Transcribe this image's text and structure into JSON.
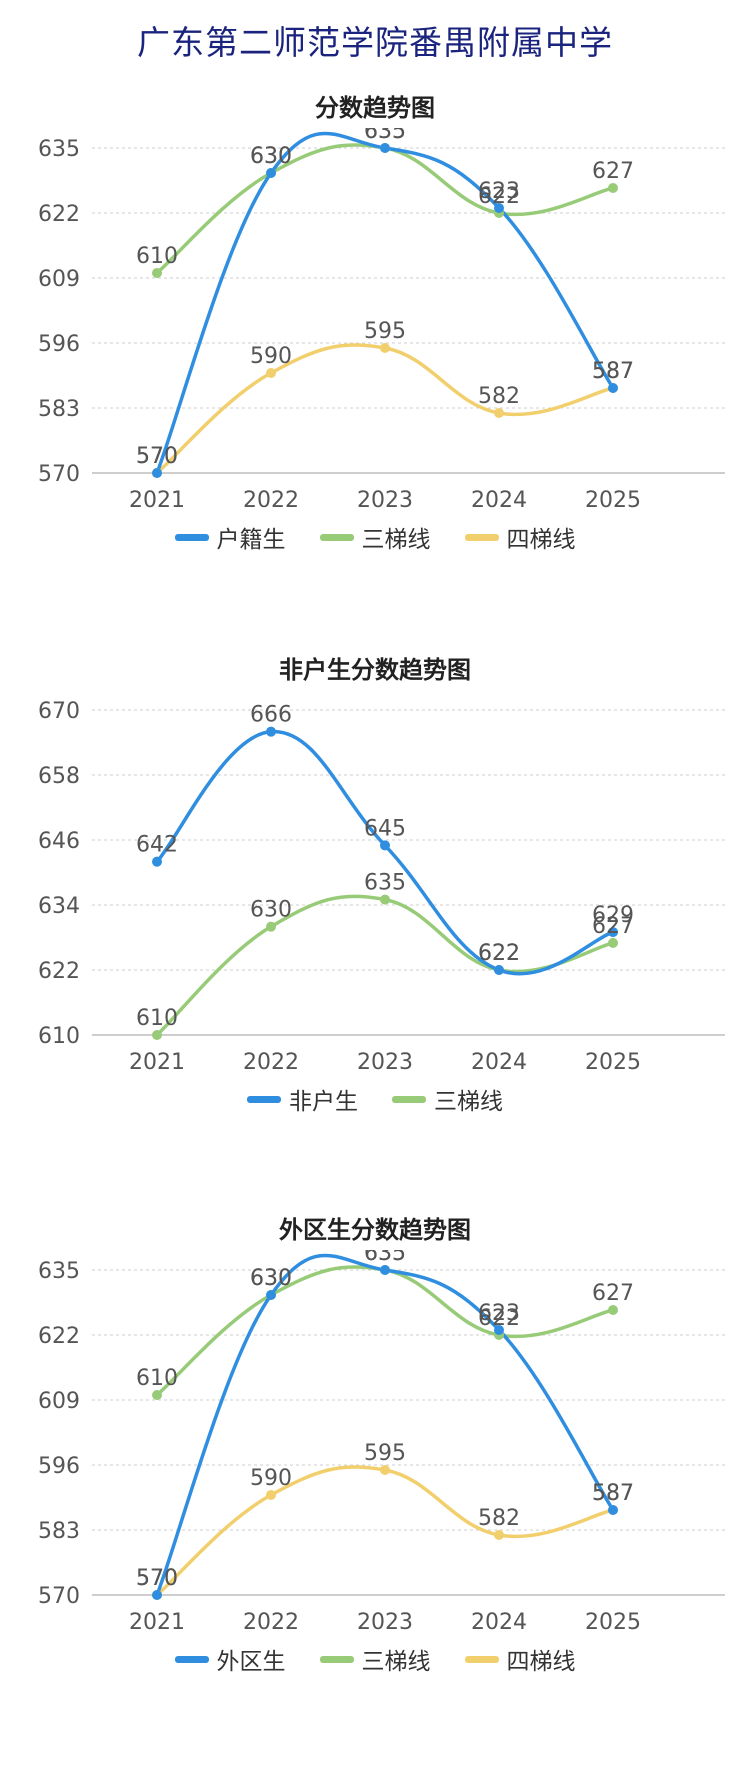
{
  "page_title": "广东第二师范学院番禺附属中学",
  "colors": {
    "blue": "#2f8ee0",
    "green": "#98cb78",
    "yellow": "#f2cf6d"
  },
  "chart_data": [
    {
      "type": "line",
      "title": "分数趋势图",
      "categories": [
        "2021",
        "2022",
        "2023",
        "2024",
        "2025"
      ],
      "ylim": [
        570,
        635
      ],
      "yticks": [
        570,
        583,
        596,
        609,
        622,
        635
      ],
      "grid": true,
      "legend_position": "bottom",
      "series": [
        {
          "name": "户籍生",
          "color": "#2f8ee0",
          "values": [
            570,
            630,
            635,
            623,
            587
          ],
          "labels": [
            "570",
            "630",
            "635",
            "623",
            "587"
          ]
        },
        {
          "name": "三梯线",
          "color": "#98cb78",
          "values": [
            610,
            630,
            635,
            622,
            627
          ],
          "labels": [
            "610",
            "630",
            "635",
            "622",
            "627"
          ]
        },
        {
          "name": "四梯线",
          "color": "#f2cf6d",
          "values": [
            570,
            590,
            595,
            582,
            587
          ],
          "labels": [
            "570",
            "590",
            "595",
            "582",
            "587"
          ]
        }
      ]
    },
    {
      "type": "line",
      "title": "非户生分数趋势图",
      "categories": [
        "2021",
        "2022",
        "2023",
        "2024",
        "2025"
      ],
      "ylim": [
        610,
        670
      ],
      "yticks": [
        610,
        622,
        634,
        646,
        658,
        670
      ],
      "grid": true,
      "legend_position": "bottom",
      "series": [
        {
          "name": "非户生",
          "color": "#2f8ee0",
          "values": [
            642,
            666,
            645,
            622,
            629
          ],
          "labels": [
            "642",
            "666",
            "645",
            "622",
            "629"
          ]
        },
        {
          "name": "三梯线",
          "color": "#98cb78",
          "values": [
            610,
            630,
            635,
            622,
            627
          ],
          "labels": [
            "610",
            "630",
            "635",
            "622",
            "627"
          ]
        }
      ]
    },
    {
      "type": "line",
      "title": "外区生分数趋势图",
      "categories": [
        "2021",
        "2022",
        "2023",
        "2024",
        "2025"
      ],
      "ylim": [
        570,
        635
      ],
      "yticks": [
        570,
        583,
        596,
        609,
        622,
        635
      ],
      "grid": true,
      "legend_position": "bottom",
      "series": [
        {
          "name": "外区生",
          "color": "#2f8ee0",
          "values": [
            570,
            630,
            635,
            623,
            587
          ],
          "labels": [
            "570",
            "630",
            "635",
            "623",
            "587"
          ]
        },
        {
          "name": "三梯线",
          "color": "#98cb78",
          "values": [
            610,
            630,
            635,
            622,
            627
          ],
          "labels": [
            "610",
            "630",
            "635",
            "622",
            "627"
          ]
        },
        {
          "name": "四梯线",
          "color": "#f2cf6d",
          "values": [
            570,
            590,
            595,
            582,
            587
          ],
          "labels": [
            "570",
            "590",
            "595",
            "582",
            "587"
          ]
        }
      ]
    }
  ]
}
